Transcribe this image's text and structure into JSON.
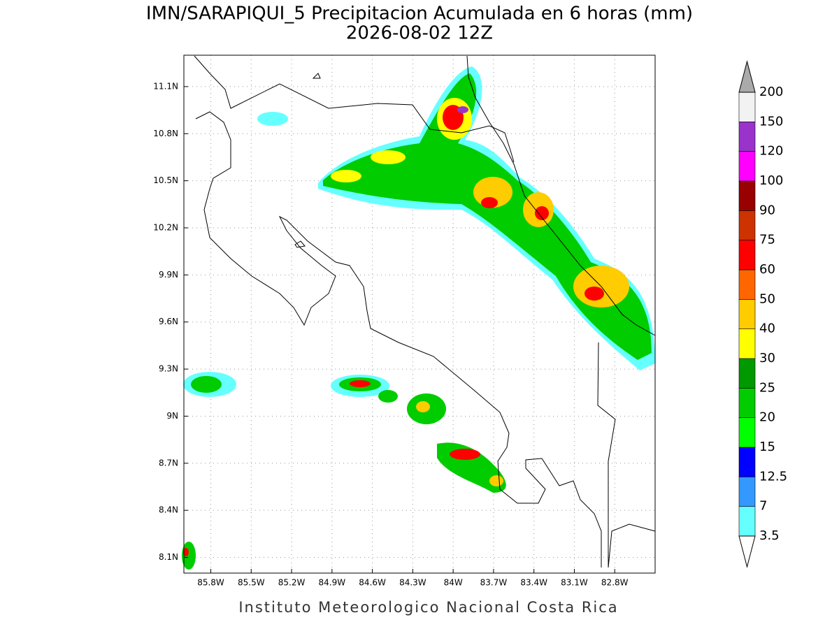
{
  "header": {
    "title": "IMN/SARAPIQUI_5 Precipitacion Acumulada en 6 horas (mm)",
    "subtitle": "2026-08-02 12Z"
  },
  "map": {
    "lon_range": [
      -86.0,
      -82.5
    ],
    "lat_range": [
      8.0,
      11.3
    ],
    "lon_ticks": [
      {
        "value": -85.8,
        "label": "85.8W"
      },
      {
        "value": -85.5,
        "label": "85.5W"
      },
      {
        "value": -85.2,
        "label": "85.2W"
      },
      {
        "value": -84.9,
        "label": "84.9W"
      },
      {
        "value": -84.6,
        "label": "84.6W"
      },
      {
        "value": -84.3,
        "label": "84.3W"
      },
      {
        "value": -84.0,
        "label": "84W"
      },
      {
        "value": -83.7,
        "label": "83.7W"
      },
      {
        "value": -83.4,
        "label": "83.4W"
      },
      {
        "value": -83.1,
        "label": "83.1W"
      },
      {
        "value": -82.8,
        "label": "82.8W"
      }
    ],
    "lat_ticks": [
      {
        "value": 8.1,
        "label": "8.1N"
      },
      {
        "value": 8.4,
        "label": "8.4N"
      },
      {
        "value": 8.7,
        "label": "8.7N"
      },
      {
        "value": 9.0,
        "label": "9N"
      },
      {
        "value": 9.3,
        "label": "9.3N"
      },
      {
        "value": 9.6,
        "label": "9.6N"
      },
      {
        "value": 9.9,
        "label": "9.9N"
      },
      {
        "value": 10.2,
        "label": "10.2N"
      },
      {
        "value": 10.5,
        "label": "10.5N"
      },
      {
        "value": 10.8,
        "label": "10.8N"
      },
      {
        "value": 11.1,
        "label": "11.1N"
      }
    ]
  },
  "colorbar": {
    "levels": [
      3.5,
      7,
      12.5,
      15,
      20,
      25,
      30,
      40,
      50,
      60,
      75,
      90,
      100,
      120,
      150,
      200
    ],
    "colors": [
      "#66ffff",
      "#3399ff",
      "#0000ff",
      "#00ff00",
      "#00cc00",
      "#009900",
      "#ffff00",
      "#ffcc00",
      "#ff6600",
      "#ff0000",
      "#cc3300",
      "#990000",
      "#ff00ff",
      "#9933cc",
      "#f2f2f2"
    ],
    "under_color": "#ffffff",
    "over_color": "#aaaaaa"
  },
  "footer": "Instituto Meteorologico Nacional Costa Rica"
}
